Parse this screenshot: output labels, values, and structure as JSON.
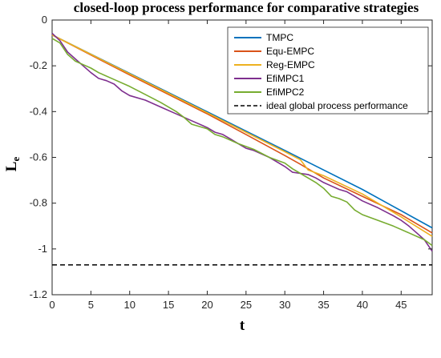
{
  "chart_data": {
    "type": "line",
    "title": "closed-loop process performance for comparative strategies",
    "xlabel": "t",
    "ylabel": "L",
    "ylabel_sub": "e",
    "xlim": [
      0,
      49
    ],
    "ylim": [
      -1.2,
      0
    ],
    "xticks": [
      0,
      5,
      10,
      15,
      20,
      25,
      30,
      35,
      40,
      45
    ],
    "yticks": [
      0,
      -0.2,
      -0.4,
      -0.6,
      -0.8,
      -1,
      -1.2
    ],
    "grid": false,
    "legend_position": "top-right",
    "series": [
      {
        "name": "TMPC",
        "color": "#0072BD",
        "style": "solid",
        "x": [
          0,
          10,
          20,
          30,
          40,
          49
        ],
        "y": [
          -0.065,
          -0.233,
          -0.401,
          -0.57,
          -0.74,
          -0.908
        ]
      },
      {
        "name": "Equ-EMPC",
        "color": "#D95319",
        "style": "solid",
        "x": [
          0,
          5,
          10,
          15,
          20,
          25,
          30,
          32,
          35,
          40,
          45,
          49
        ],
        "y": [
          -0.065,
          -0.153,
          -0.24,
          -0.325,
          -0.41,
          -0.5,
          -0.592,
          -0.63,
          -0.69,
          -0.77,
          -0.85,
          -0.93
        ]
      },
      {
        "name": "Reg-EMPC",
        "color": "#EDB120",
        "style": "solid",
        "x": [
          0,
          5,
          10,
          15,
          20,
          25,
          30,
          32,
          33,
          35,
          40,
          45,
          49
        ],
        "y": [
          -0.065,
          -0.15,
          -0.235,
          -0.32,
          -0.405,
          -0.49,
          -0.575,
          -0.61,
          -0.655,
          -0.68,
          -0.76,
          -0.86,
          -0.945
        ]
      },
      {
        "name": "EfiMPC1",
        "color": "#7E2F8E",
        "style": "solid",
        "x": [
          0,
          1,
          2,
          3,
          4,
          5,
          6,
          7,
          8,
          9,
          10,
          12,
          14,
          16,
          18,
          20,
          21,
          22,
          23,
          24,
          25,
          26,
          28,
          30,
          31,
          32,
          33,
          34,
          35,
          36,
          37,
          38,
          39,
          40,
          42,
          44,
          45,
          46,
          47,
          48,
          49
        ],
        "y": [
          -0.058,
          -0.09,
          -0.14,
          -0.17,
          -0.2,
          -0.23,
          -0.255,
          -0.265,
          -0.28,
          -0.31,
          -0.33,
          -0.35,
          -0.38,
          -0.41,
          -0.44,
          -0.47,
          -0.49,
          -0.5,
          -0.52,
          -0.54,
          -0.56,
          -0.57,
          -0.6,
          -0.64,
          -0.665,
          -0.67,
          -0.675,
          -0.69,
          -0.71,
          -0.725,
          -0.74,
          -0.75,
          -0.77,
          -0.79,
          -0.82,
          -0.855,
          -0.875,
          -0.9,
          -0.93,
          -0.96,
          -1.01
        ]
      },
      {
        "name": "EfiMPC2",
        "color": "#77AC30",
        "style": "solid",
        "x": [
          0,
          1,
          2,
          3,
          4,
          5,
          6,
          8,
          10,
          12,
          14,
          16,
          17,
          18,
          20,
          21,
          22,
          24,
          26,
          28,
          30,
          31,
          32,
          33,
          34,
          35,
          36,
          37,
          38,
          39,
          40,
          42,
          44,
          46,
          48,
          49
        ],
        "y": [
          -0.08,
          -0.1,
          -0.15,
          -0.18,
          -0.195,
          -0.21,
          -0.23,
          -0.26,
          -0.29,
          -0.325,
          -0.36,
          -0.4,
          -0.425,
          -0.455,
          -0.475,
          -0.5,
          -0.51,
          -0.54,
          -0.565,
          -0.6,
          -0.625,
          -0.65,
          -0.67,
          -0.69,
          -0.71,
          -0.735,
          -0.77,
          -0.78,
          -0.795,
          -0.83,
          -0.85,
          -0.875,
          -0.9,
          -0.93,
          -0.96,
          -0.985
        ]
      },
      {
        "name": "ideal global process performance",
        "color": "#000000",
        "style": "dashed",
        "x": [
          0,
          49
        ],
        "y": [
          -1.07,
          -1.07
        ]
      }
    ]
  }
}
